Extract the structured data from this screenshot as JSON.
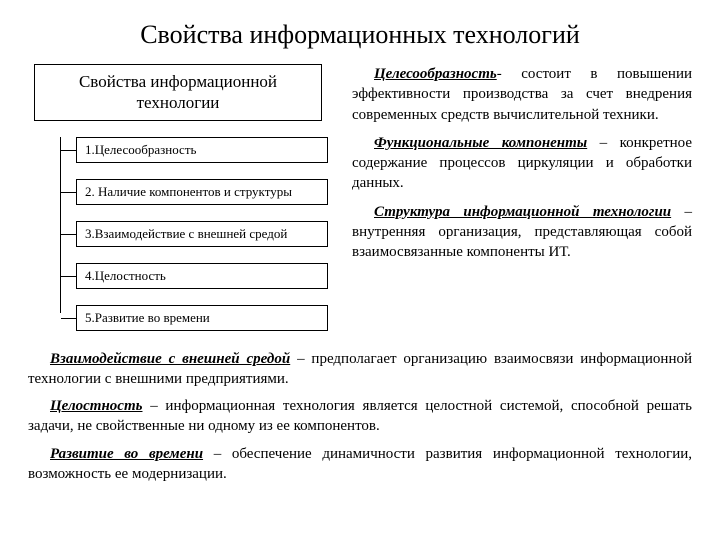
{
  "title": "Свойства информационных технологий",
  "header_box": "Свойства информационной технологии",
  "items": {
    "i1": "1.Целесообразность",
    "i2": "2. Наличие компонентов и структуры",
    "i3": "3.Взаимодействие с внешней средой",
    "i4": "4.Целостность",
    "i5": "5.Развитие во времени"
  },
  "right": {
    "p1_term": "Целесообразность",
    "p1_rest": "- состоит в повышении эффективности производства за счет внедрения современных средств вычислительной техники.",
    "p2_term": "Функциональные компоненты",
    "p2_rest": " – конкретное содержание процессов циркуляции и обработки данных.",
    "p3_term": "Структура информационной технологии",
    "p3_rest": " – внутренняя организация, представляющая собой взаимосвязанные компоненты ИТ."
  },
  "bottom": {
    "b1_term": "Взаимодействие с внешней средой",
    "b1_rest": " – предполагает организацию взаимосвязи информационной технологии с внешними предприятиями.",
    "b2_term": "Целостность",
    "b2_rest": " – информационная технология является целостной системой, способной решать задачи, не свойственные ни одному из ее компонентов.",
    "b3_term": "Развитие во времени",
    "b3_rest": " – обеспечение динамичности развития информационной технологии, возможность ее модернизации."
  }
}
